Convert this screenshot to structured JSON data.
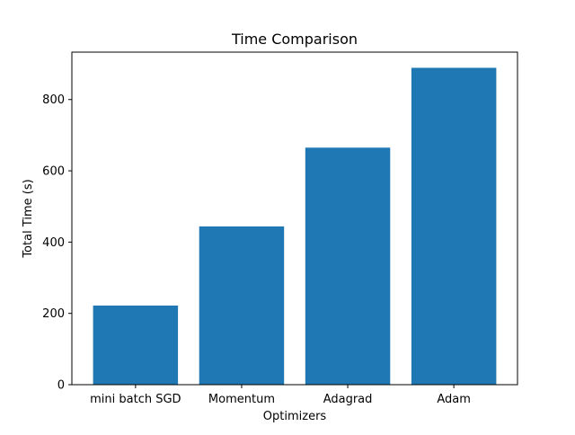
{
  "chart_data": {
    "type": "bar",
    "title": "Time Comparison",
    "xlabel": "Optimizers",
    "ylabel": "Total Time (s)",
    "categories": [
      "mini batch SGD",
      "Momentum",
      "Adagrad",
      "Adam"
    ],
    "values": [
      222,
      444,
      665,
      889
    ],
    "ylim": [
      0,
      933
    ],
    "yticks": [
      0,
      200,
      400,
      600,
      800
    ],
    "grid": false,
    "bar_color": "#1f77b4"
  }
}
